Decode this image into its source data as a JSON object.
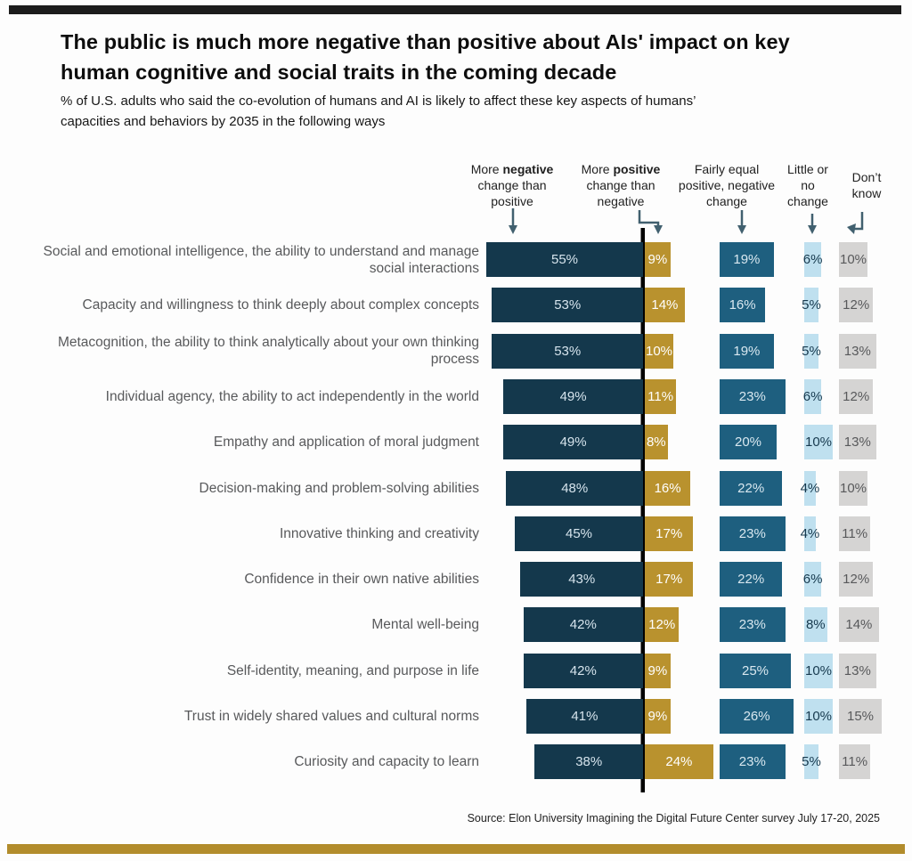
{
  "header": {
    "title": "The public is much more negative than positive about AIs' impact on key human cognitive and social traits in the coming decade",
    "subtitle": "% of U.S. adults who said the co-evolution of humans and AI is likely to affect these key aspects of humans’ capacities and behaviors by 2035 in the following ways"
  },
  "column_headers": [
    {
      "pre": "More ",
      "bold": "negative",
      "post": " change than positive"
    },
    {
      "pre": "More ",
      "bold": "positive",
      "post": " change than negative"
    },
    {
      "pre": "Fairly equal positive, negative change",
      "bold": "",
      "post": ""
    },
    {
      "pre": "Little or no change",
      "bold": "",
      "post": ""
    },
    {
      "pre": "Don’t know",
      "bold": "",
      "post": ""
    }
  ],
  "chart_data": {
    "type": "bar",
    "subtype": "diverging-horizontal-stacked",
    "title": "The public is much more negative than positive about AIs' impact on key human cognitive and social traits in the coming decade",
    "subtitle": "% of U.S. adults who said the co-evolution of humans and AI is likely to affect these key aspects of humans’ capacities and behaviors by 2035 in the following ways",
    "unit": "%",
    "categories": [
      "Social and emotional intelligence, the ability to understand and manage social interactions",
      "Capacity and willingness to think deeply about complex concepts",
      "Metacognition, the ability to think analytically about your own thinking process",
      "Individual agency, the ability to act independently in the world",
      "Empathy and application of moral judgment",
      "Decision-making and problem-solving abilities",
      "Innovative thinking and creativity",
      "Confidence in their own native abilities",
      "Mental well-being",
      "Self-identity, meaning, and purpose in life",
      "Trust in widely shared values and cultural norms",
      "Curiosity and capacity to learn"
    ],
    "series": [
      {
        "name": "More negative change than positive",
        "values": [
          55,
          53,
          53,
          49,
          49,
          48,
          45,
          43,
          42,
          42,
          41,
          38
        ]
      },
      {
        "name": "More positive change than negative",
        "values": [
          9,
          14,
          10,
          11,
          8,
          16,
          17,
          17,
          12,
          9,
          9,
          24
        ]
      },
      {
        "name": "Fairly equal positive, negative change",
        "values": [
          19,
          16,
          19,
          23,
          20,
          22,
          23,
          22,
          23,
          25,
          26,
          23
        ]
      },
      {
        "name": "Little or no change",
        "values": [
          6,
          5,
          5,
          6,
          10,
          4,
          4,
          6,
          8,
          10,
          10,
          5
        ]
      },
      {
        "name": "Don't know",
        "values": [
          10,
          12,
          13,
          12,
          13,
          10,
          11,
          12,
          14,
          13,
          15,
          11
        ]
      }
    ],
    "layout": {
      "legend_position": "top-as-column-headers",
      "grid": false,
      "value_labels": "inside-bars",
      "divider": "vertical black line between negative and positive bars"
    }
  },
  "source": "Source: Elon University Imagining the Digital Future Center survey July 17-20, 2025",
  "colors": {
    "negative_bar": "#14384c",
    "negative_label": "#d6e4ed",
    "positive_bar": "#b9922e",
    "positive_label": "#ffffff",
    "equal_bar": "#1e5f7f",
    "equal_label": "#d9e8f0",
    "little_bar": "#bfe0ef",
    "little_label": "#16394e",
    "dontknow_bar": "#d5d4d3",
    "dontknow_label": "#58595b",
    "divider": "#000000",
    "arrow": "#41606f",
    "top_rule": "#1c1c1c",
    "bottom_rule": "#b28c2c",
    "row_label": "#58595b"
  }
}
